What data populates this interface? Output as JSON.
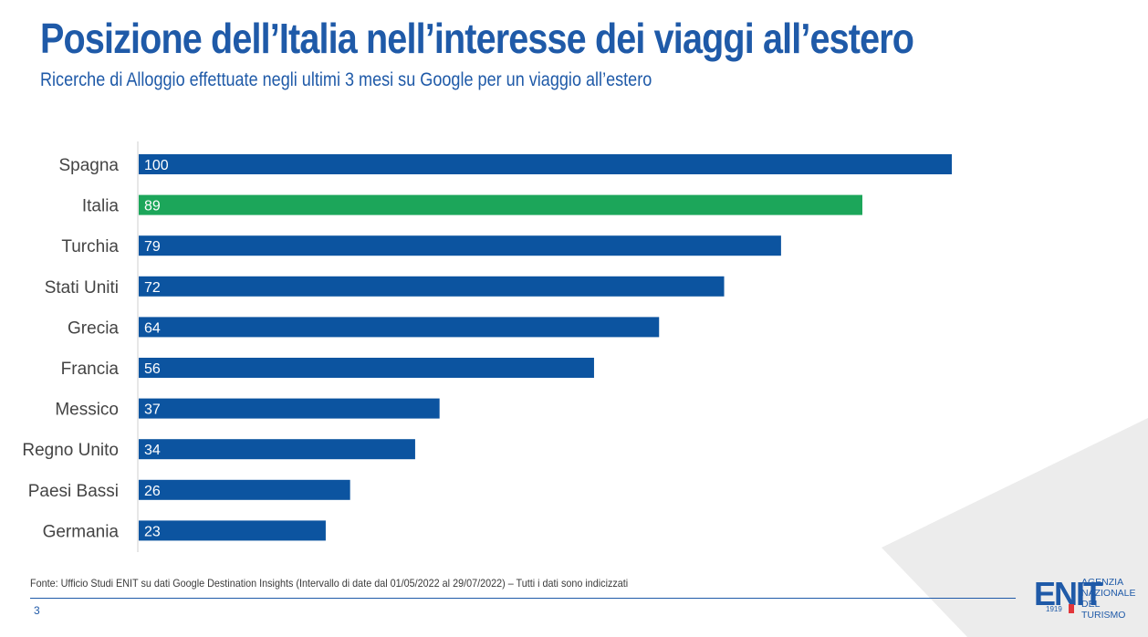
{
  "header": {
    "title": "Posizione dell’Italia nell’interesse dei viaggi all’estero",
    "subtitle": "Ricerche di Alloggio effettuate negli ultimi 3 mesi su Google per un viaggio all’estero"
  },
  "chart_data": {
    "type": "bar",
    "orientation": "horizontal",
    "title": "",
    "xlabel": "",
    "ylabel": "",
    "xlim": [
      0,
      100
    ],
    "grid": false,
    "legend": "none",
    "categories": [
      "Spagna",
      "Italia",
      "Turchia",
      "Stati Uniti",
      "Grecia",
      "Francia",
      "Messico",
      "Regno Unito",
      "Paesi Bassi",
      "Germania"
    ],
    "values": [
      100,
      89,
      79,
      72,
      64,
      56,
      37,
      34,
      26,
      23
    ],
    "colors": [
      "#0c54a0",
      "#1ca65a",
      "#0c54a0",
      "#0c54a0",
      "#0c54a0",
      "#0c54a0",
      "#0c54a0",
      "#0c54a0",
      "#0c54a0",
      "#0c54a0"
    ]
  },
  "footer": {
    "source": "Fonte: Ufficio Studi ENIT su dati Google Destination Insights (Intervallo di date dal 01/05/2022 al 29/07/2022) – Tutti i dati sono indicizzati",
    "page_number": "3"
  },
  "logo": {
    "mark": "ENIT",
    "year": "1919",
    "line1": "Agenzia",
    "line2": "Nazionale",
    "line3": "del Turismo"
  },
  "colors": {
    "brand_blue": "#1f5aa8",
    "bar_blue": "#0c54a0",
    "bar_green": "#1ca65a",
    "decor_gray": "#e8e8e8"
  }
}
